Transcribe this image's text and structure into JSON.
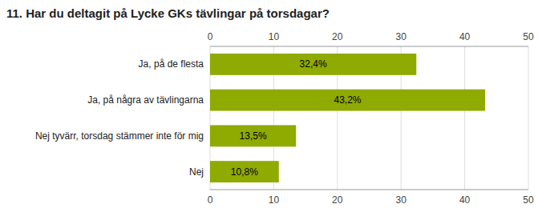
{
  "chart_data": {
    "type": "bar",
    "orientation": "horizontal",
    "title": "11. Har du deltagit på Lycke GKs tävlingar på torsdagar?",
    "categories": [
      "Ja, på de flesta",
      "Ja, på några av tävlingarna",
      "Nej tyvärr, torsdag stämmer inte för mig",
      "Nej"
    ],
    "values": [
      32.4,
      43.2,
      13.5,
      10.8
    ],
    "value_labels": [
      "32,4%",
      "43,2%",
      "13,5%",
      "10,8%"
    ],
    "data_labels": true,
    "color": "#8faa00",
    "xlim": [
      0,
      50
    ],
    "xticks": [
      0,
      10,
      20,
      30,
      40,
      50
    ],
    "grid": true
  }
}
